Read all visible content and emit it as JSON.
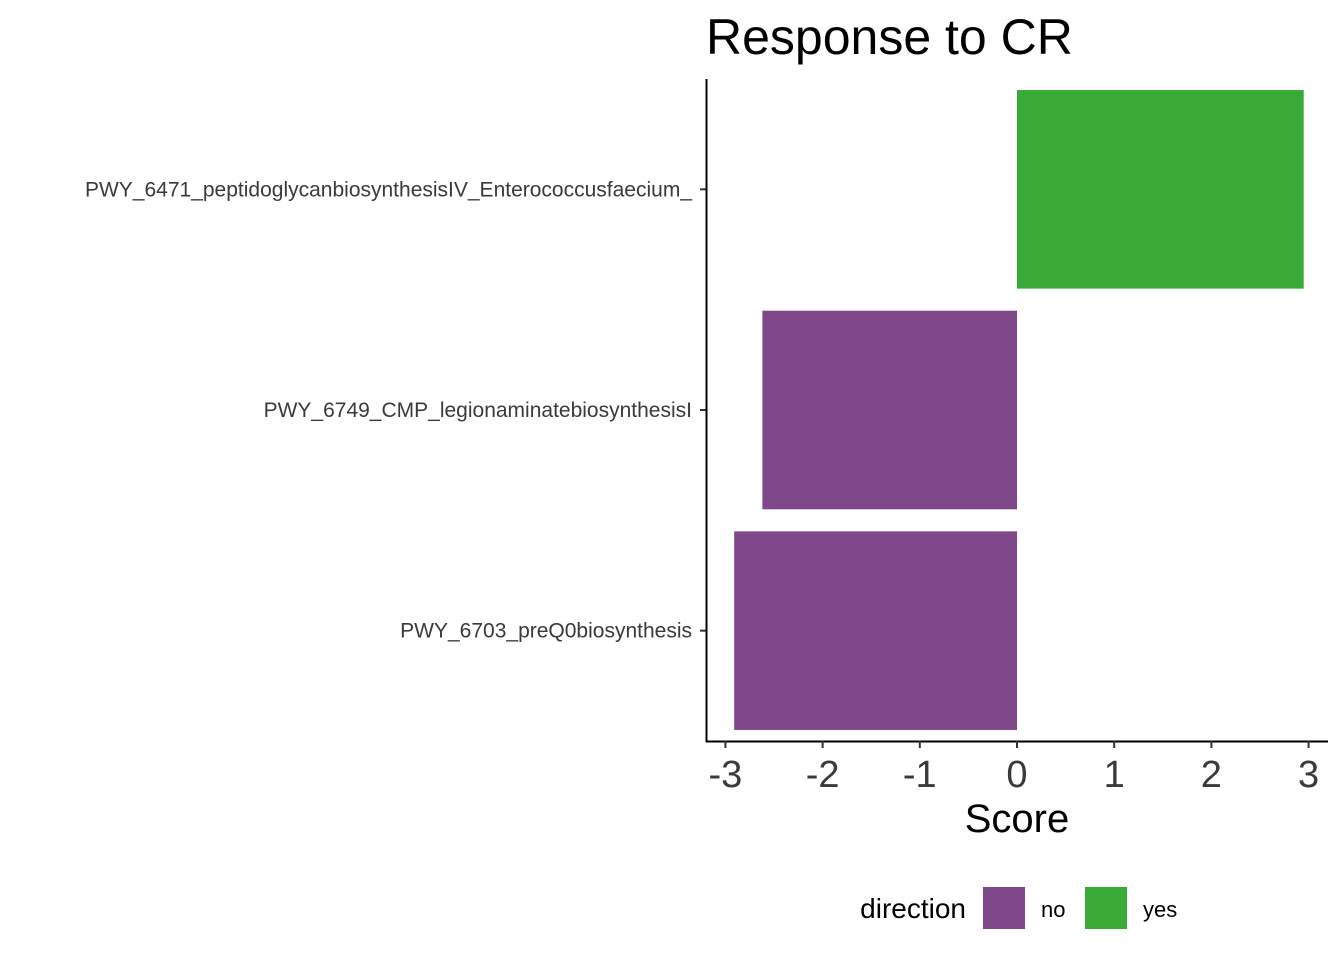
{
  "chart_data": {
    "type": "bar",
    "orientation": "horizontal",
    "title": "Response to CR",
    "xlabel": "Score",
    "ylabel": "",
    "xlim": [
      -3.2,
      3.2
    ],
    "x_ticks": [
      -3,
      -2,
      -1,
      0,
      1,
      2,
      3
    ],
    "x_tick_labels": [
      "-3",
      "-2",
      "-1",
      "0",
      "1",
      "2",
      "3"
    ],
    "categories": [
      "PWY_6471_peptidoglycanbiosynthesisIV_Enterococcusfaecium_",
      "PWY_6749_CMP_legionaminatebiosynthesisI",
      "PWY_6703_preQ0biosynthesis"
    ],
    "values": [
      2.95,
      -2.62,
      -2.91
    ],
    "direction": [
      "yes",
      "no",
      "no"
    ],
    "grid": false,
    "legend": {
      "title": "direction",
      "position": "bottom",
      "entries": [
        {
          "label": "no",
          "color": "#7f488b"
        },
        {
          "label": "yes",
          "color": "#39aa35"
        }
      ]
    }
  }
}
